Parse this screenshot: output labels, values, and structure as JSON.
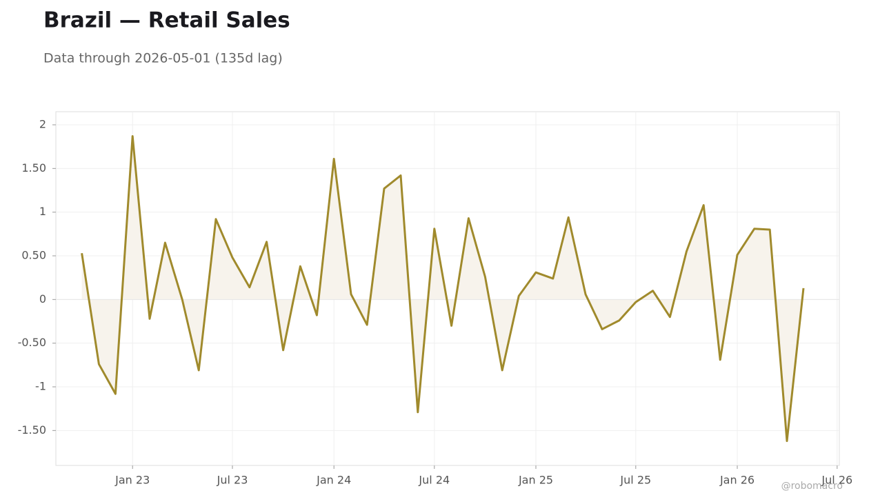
{
  "chart_data": {
    "type": "line",
    "title": "Brazil — Retail Sales",
    "subtitle": "Data through 2026-05-01 (135d lag)",
    "watermark": "@robomacro",
    "x": [
      "2022-10",
      "2022-11",
      "2022-12",
      "2023-01",
      "2023-02",
      "2023-03",
      "2023-04",
      "2023-05",
      "2023-06",
      "2023-07",
      "2023-08",
      "2023-09",
      "2023-10",
      "2023-11",
      "2023-12",
      "2024-01",
      "2024-02",
      "2024-03",
      "2024-04",
      "2024-05",
      "2024-06",
      "2024-07",
      "2024-08",
      "2024-09",
      "2024-10",
      "2024-11",
      "2024-12",
      "2025-01",
      "2025-02",
      "2025-03",
      "2025-04",
      "2025-05",
      "2025-06",
      "2025-07",
      "2025-08",
      "2025-09",
      "2025-10",
      "2025-11",
      "2025-12",
      "2026-01",
      "2026-02",
      "2026-03",
      "2026-04",
      "2026-05"
    ],
    "series": [
      {
        "name": "Retail Sales",
        "color": "#a08a2c",
        "fill": "#f7f3ec",
        "values": [
          0.53,
          -0.74,
          -1.08,
          1.87,
          -0.22,
          0.65,
          0.0,
          -0.81,
          0.92,
          0.48,
          0.14,
          0.66,
          -0.58,
          0.38,
          -0.18,
          1.61,
          0.06,
          -0.29,
          1.27,
          1.42,
          -1.29,
          0.81,
          -0.3,
          0.93,
          0.26,
          -0.81,
          0.04,
          0.31,
          0.24,
          0.94,
          0.06,
          -0.34,
          -0.24,
          -0.03,
          0.1,
          -0.2,
          0.55,
          1.08,
          -0.69,
          0.51,
          0.81,
          0.8,
          -1.62,
          0.13
        ]
      }
    ],
    "xlim": [
      "2022-08-15",
      "2026-07-05"
    ],
    "xticks": [
      {
        "value": "2023-01",
        "label": "Jan 23"
      },
      {
        "value": "2023-07",
        "label": "Jul 23"
      },
      {
        "value": "2024-01",
        "label": "Jan 24"
      },
      {
        "value": "2024-07",
        "label": "Jul 24"
      },
      {
        "value": "2025-01",
        "label": "Jan 25"
      },
      {
        "value": "2025-07",
        "label": "Jul 25"
      },
      {
        "value": "2026-01",
        "label": "Jan 26"
      },
      {
        "value": "2026-07",
        "label": "Jul 26"
      }
    ],
    "ylim": [
      -1.9,
      2.15
    ],
    "yticks": [
      {
        "value": -1.5,
        "label": "-1.50"
      },
      -1,
      {
        "value": -0.5,
        "label": "-0.50"
      },
      0,
      {
        "value": 0.5,
        "label": "0.50"
      },
      1,
      {
        "value": 1.5,
        "label": "1.50"
      },
      2
    ],
    "grid": true
  }
}
